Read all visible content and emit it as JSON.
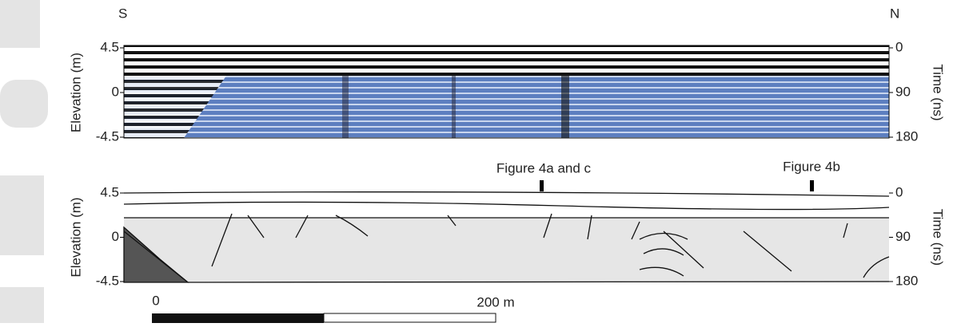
{
  "orientation": {
    "left": "S",
    "right": "N"
  },
  "panels": [
    {
      "y_label": "Elevation (m)",
      "y2_label": "Time (ns)",
      "elevation_ticks": [
        "4.5",
        "0",
        "-4.5"
      ],
      "time_ticks": [
        "0",
        "90",
        "180"
      ]
    },
    {
      "y_label": "Elevation (m)",
      "y2_label": "Time (ns)",
      "elevation_ticks": [
        "4.5",
        "0",
        "-4.5"
      ],
      "time_ticks": [
        "0",
        "90",
        "180"
      ]
    }
  ],
  "annotations": [
    "Figure 4a and c",
    "Figure 4b"
  ],
  "scale_bar": {
    "start": "0",
    "end": "200 m"
  }
}
